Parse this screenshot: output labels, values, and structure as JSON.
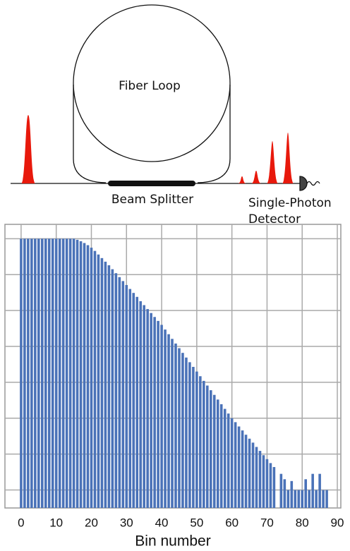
{
  "diagram": {
    "loop_label": "Fiber Loop",
    "splitter_label": "Beam Splitter",
    "detector_label": [
      "Single-Photon",
      "Detector"
    ]
  },
  "chart_data": {
    "type": "bar",
    "x_label": "Bin number",
    "color": "#4a72b8",
    "grid": true,
    "x": [
      0,
      1,
      2,
      3,
      4,
      5,
      6,
      7,
      8,
      9,
      10,
      11,
      12,
      13,
      14,
      15,
      16,
      17,
      18,
      19,
      20,
      21,
      22,
      23,
      24,
      25,
      26,
      27,
      28,
      29,
      30,
      31,
      32,
      33,
      34,
      35,
      36,
      37,
      38,
      39,
      40,
      41,
      42,
      43,
      44,
      45,
      46,
      47,
      48,
      49,
      50,
      51,
      52,
      53,
      54,
      55,
      56,
      57,
      58,
      59,
      60,
      61,
      62,
      63,
      64,
      65,
      66,
      67,
      68,
      69,
      70,
      71,
      72,
      74,
      75,
      76,
      77,
      78,
      79,
      80,
      81,
      82,
      83,
      84,
      85,
      86,
      87
    ],
    "values": [
      8,
      8,
      8,
      8,
      8,
      8,
      8,
      8,
      8,
      8,
      8,
      8,
      8,
      8,
      8,
      8,
      7.97,
      7.93,
      7.88,
      7.82,
      7.75,
      7.66,
      7.56,
      7.46,
      7.36,
      7.26,
      7.15,
      7.04,
      6.93,
      6.82,
      6.71,
      6.6,
      6.49,
      6.38,
      6.26,
      6.15,
      6.04,
      5.93,
      5.82,
      5.71,
      5.6,
      5.47,
      5.34,
      5.21,
      5.08,
      4.95,
      4.82,
      4.69,
      4.56,
      4.43,
      4.3,
      4.17,
      4.04,
      3.91,
      3.78,
      3.65,
      3.52,
      3.39,
      3.26,
      3.13,
      3,
      2.89,
      2.77,
      2.66,
      2.54,
      2.43,
      2.32,
      2.2,
      2.09,
      1.97,
      1.86,
      1.75,
      1.64,
      1.45,
      1.3,
      1,
      1.25,
      1,
      1,
      1,
      1.3,
      1,
      1.45,
      1,
      1.45,
      1,
      1
    ],
    "xlim": [
      -4.6,
      91
    ],
    "xticks": [
      0,
      10,
      20,
      30,
      40,
      50,
      60,
      70,
      80,
      90
    ],
    "ylim": [
      0.5,
      8.4
    ],
    "yticks": [
      1,
      2,
      3,
      4,
      5,
      6,
      7,
      8
    ]
  }
}
